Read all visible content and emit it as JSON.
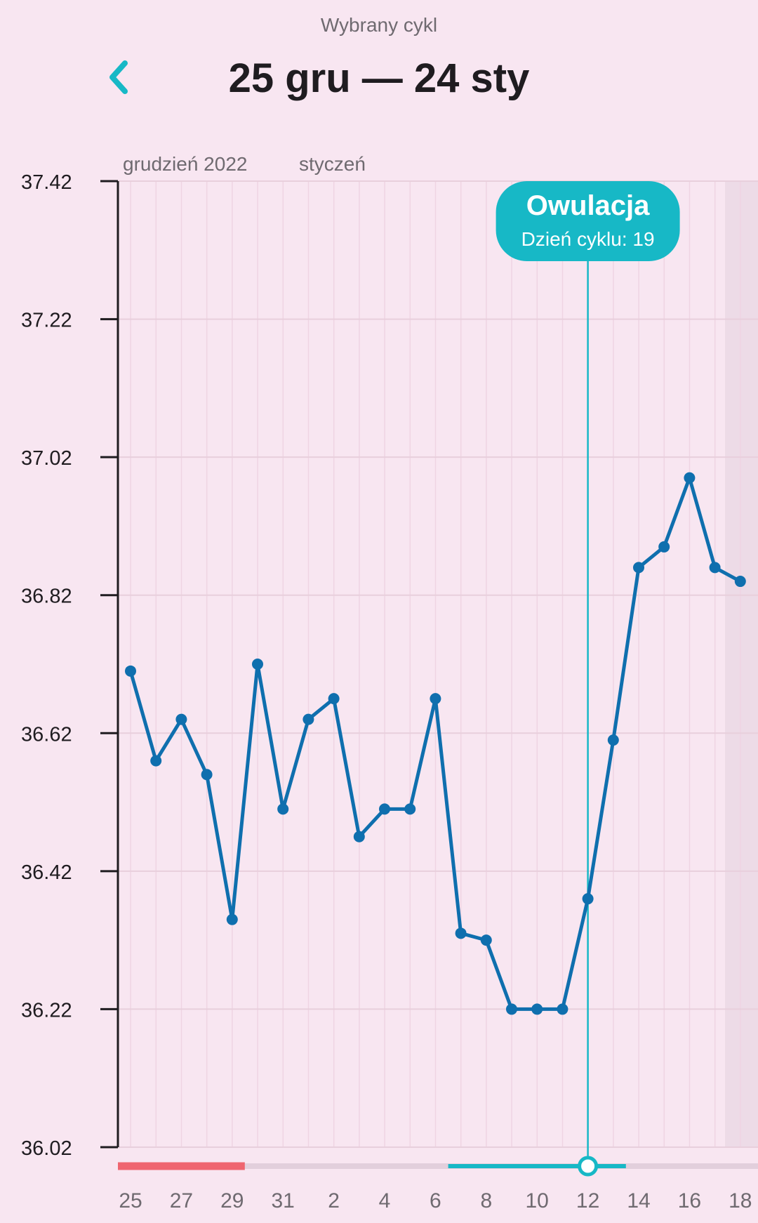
{
  "header": {
    "subtitle": "Wybrany cykl",
    "title": "25 gru — 24 sty"
  },
  "colors": {
    "accent": "#17b8c6",
    "line": "#0f6fae",
    "period": "#ef6570"
  },
  "chart_data": {
    "type": "line",
    "title": "",
    "xlabel": "",
    "ylabel": "",
    "month_labels": [
      "grudzień 2022",
      "styczeń"
    ],
    "y_ticks": [
      "37.42",
      "37.22",
      "37.02",
      "36.82",
      "36.62",
      "36.42",
      "36.22",
      "36.02"
    ],
    "ylim": [
      36.02,
      37.42
    ],
    "x_tick_labels": [
      "25",
      "27",
      "29",
      "31",
      "2",
      "4",
      "6",
      "8",
      "10",
      "12",
      "14",
      "16",
      "18"
    ],
    "x_days": [
      "25",
      "26",
      "27",
      "28",
      "29",
      "30",
      "31",
      "1",
      "2",
      "3",
      "4",
      "5",
      "6",
      "7",
      "8",
      "9",
      "10",
      "11",
      "12",
      "13",
      "14",
      "15",
      "16",
      "17",
      "18"
    ],
    "series": [
      {
        "values": [
          36.71,
          36.58,
          36.64,
          36.56,
          36.35,
          36.72,
          36.51,
          36.64,
          36.67,
          36.47,
          36.51,
          36.51,
          36.67,
          36.33,
          36.32,
          36.22,
          36.22,
          36.22,
          36.38,
          36.61,
          36.86,
          36.89,
          36.99,
          36.86,
          36.84
        ]
      }
    ],
    "ovulation": {
      "label": "Owulacja",
      "sublabel": "Dzień cyklu: 19",
      "day": "12"
    },
    "period_days": [
      "25",
      "26",
      "27",
      "28",
      "29"
    ],
    "fertile_days": [
      "7",
      "8",
      "9",
      "10",
      "11",
      "12",
      "13"
    ],
    "grid": true
  }
}
